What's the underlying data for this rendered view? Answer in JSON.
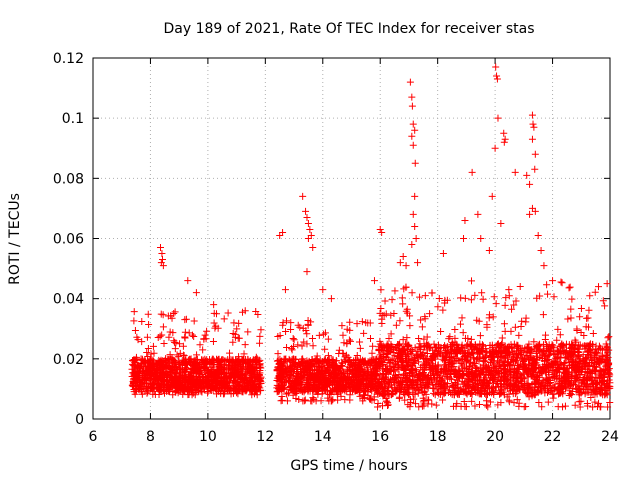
{
  "chart_data": {
    "type": "scatter",
    "title": "Day 189 of 2021, Rate Of TEC Index for receiver stas",
    "xlabel": "GPS time / hours",
    "ylabel": "ROTI / TECUs",
    "xlim": [
      6,
      24
    ],
    "ylim": [
      0,
      0.12
    ],
    "xticks": [
      "6",
      "8",
      "10",
      "12",
      "14",
      "16",
      "18",
      "20",
      "22",
      "24"
    ],
    "yticks": [
      "0",
      "0.02",
      "0.04",
      "0.06",
      "0.08",
      "0.1",
      "0.12"
    ],
    "grid": true,
    "marker": "+",
    "color": "#ff0000",
    "series": [
      {
        "name": "ROTI",
        "points": [
          [
            8.35,
            0.057
          ],
          [
            8.4,
            0.055
          ],
          [
            8.42,
            0.053
          ],
          [
            8.45,
            0.051
          ],
          [
            8.38,
            0.052
          ],
          [
            9.3,
            0.046
          ],
          [
            9.6,
            0.042
          ],
          [
            10.2,
            0.038
          ],
          [
            10.3,
            0.035
          ],
          [
            11.3,
            0.036
          ],
          [
            12.5,
            0.061
          ],
          [
            12.6,
            0.062
          ],
          [
            12.7,
            0.043
          ],
          [
            13.3,
            0.074
          ],
          [
            13.4,
            0.069
          ],
          [
            13.45,
            0.067
          ],
          [
            13.5,
            0.065
          ],
          [
            13.55,
            0.063
          ],
          [
            13.6,
            0.061
          ],
          [
            13.5,
            0.06
          ],
          [
            13.65,
            0.057
          ],
          [
            13.45,
            0.049
          ],
          [
            14.0,
            0.043
          ],
          [
            14.3,
            0.04
          ],
          [
            15.8,
            0.046
          ],
          [
            16.0,
            0.063
          ],
          [
            16.05,
            0.062
          ],
          [
            16.7,
            0.052
          ],
          [
            16.8,
            0.054
          ],
          [
            16.9,
            0.051
          ],
          [
            17.05,
            0.112
          ],
          [
            17.1,
            0.107
          ],
          [
            17.12,
            0.104
          ],
          [
            17.15,
            0.098
          ],
          [
            17.2,
            0.096
          ],
          [
            17.1,
            0.094
          ],
          [
            17.15,
            0.091
          ],
          [
            17.22,
            0.085
          ],
          [
            17.2,
            0.074
          ],
          [
            17.15,
            0.068
          ],
          [
            17.2,
            0.064
          ],
          [
            17.25,
            0.06
          ],
          [
            17.1,
            0.058
          ],
          [
            17.3,
            0.052
          ],
          [
            18.2,
            0.055
          ],
          [
            18.9,
            0.06
          ],
          [
            18.95,
            0.066
          ],
          [
            19.2,
            0.082
          ],
          [
            19.4,
            0.068
          ],
          [
            19.5,
            0.06
          ],
          [
            19.9,
            0.074
          ],
          [
            20.02,
            0.117
          ],
          [
            20.05,
            0.114
          ],
          [
            20.08,
            0.113
          ],
          [
            20.1,
            0.1
          ],
          [
            20.0,
            0.09
          ],
          [
            20.3,
            0.095
          ],
          [
            20.35,
            0.093
          ],
          [
            20.32,
            0.092
          ],
          [
            20.2,
            0.065
          ],
          [
            19.8,
            0.056
          ],
          [
            20.7,
            0.082
          ],
          [
            21.1,
            0.081
          ],
          [
            21.2,
            0.078
          ],
          [
            21.3,
            0.101
          ],
          [
            21.32,
            0.098
          ],
          [
            21.35,
            0.097
          ],
          [
            21.3,
            0.093
          ],
          [
            21.4,
            0.088
          ],
          [
            21.38,
            0.083
          ],
          [
            21.3,
            0.07
          ],
          [
            21.4,
            0.069
          ],
          [
            21.2,
            0.068
          ],
          [
            21.5,
            0.061
          ],
          [
            21.6,
            0.056
          ],
          [
            21.7,
            0.051
          ],
          [
            22.0,
            0.046
          ],
          [
            23.6,
            0.044
          ],
          [
            23.9,
            0.045
          ]
        ]
      }
    ],
    "dense_bands": [
      {
        "x": [
          7.35,
          11.85
        ],
        "y_min": 0.008,
        "y_core": [
          0.009,
          0.02
        ],
        "y_max": 0.036,
        "count": 1300
      },
      {
        "x": [
          12.4,
          15.9
        ],
        "y_min": 0.006,
        "y_core": [
          0.009,
          0.02
        ],
        "y_max": 0.033,
        "count": 1000
      },
      {
        "x": [
          15.9,
          24.0
        ],
        "y_min": 0.004,
        "y_core": [
          0.008,
          0.025
        ],
        "y_max": 0.046,
        "count": 2200
      }
    ]
  }
}
